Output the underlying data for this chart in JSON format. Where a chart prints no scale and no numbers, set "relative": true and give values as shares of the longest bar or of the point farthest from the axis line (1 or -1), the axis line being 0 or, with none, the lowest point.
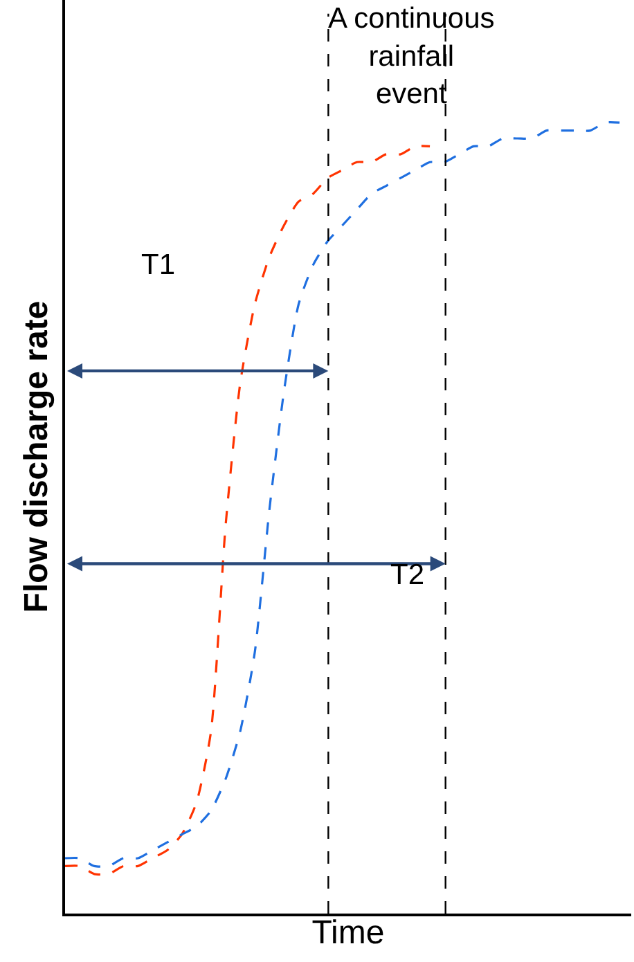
{
  "chart_data": {
    "type": "line",
    "relative": true,
    "xlabel": "Time",
    "ylabel": "Flow discharge rate",
    "categories": [
      null,
      null,
      null,
      null,
      null,
      null,
      null,
      null,
      null,
      null,
      null,
      null,
      null,
      null,
      null,
      null,
      null,
      null,
      null,
      null,
      null,
      null,
      null,
      null,
      null,
      null,
      null,
      null,
      null,
      null,
      null,
      null,
      null,
      null,
      null,
      null,
      null,
      null,
      null
    ],
    "series": [
      {
        "color": "#ff3300",
        "values": [
          0.06,
          0.06,
          0.05,
          0.05,
          0.06,
          0.06,
          0.07,
          0.08,
          0.1,
          0.14,
          0.23,
          0.49,
          0.67,
          0.77,
          0.83,
          0.87,
          0.9,
          0.91,
          0.93,
          0.94,
          0.95,
          0.95,
          0.96,
          0.96,
          0.97,
          0.97,
          null,
          null,
          null,
          null,
          null,
          null,
          null,
          null,
          null,
          null,
          null,
          null,
          null
        ]
      },
      {
        "color": "#1f6fe0",
        "values": [
          0.07,
          0.07,
          0.06,
          0.06,
          0.07,
          0.07,
          0.08,
          0.09,
          0.1,
          0.11,
          0.13,
          0.17,
          0.23,
          0.33,
          0.51,
          0.66,
          0.77,
          0.82,
          0.85,
          0.87,
          0.89,
          0.91,
          0.92,
          0.93,
          0.94,
          0.95,
          0.95,
          0.96,
          0.97,
          0.97,
          0.98,
          0.98,
          0.98,
          0.99,
          0.99,
          0.99,
          0.99,
          1.0,
          1.0
        ]
      }
    ],
    "annotations": [
      "A continuous\nrainfall\nevent",
      "T1",
      "T2"
    ],
    "line_style": "dashed",
    "marker": "none",
    "tick_labels": false
  }
}
